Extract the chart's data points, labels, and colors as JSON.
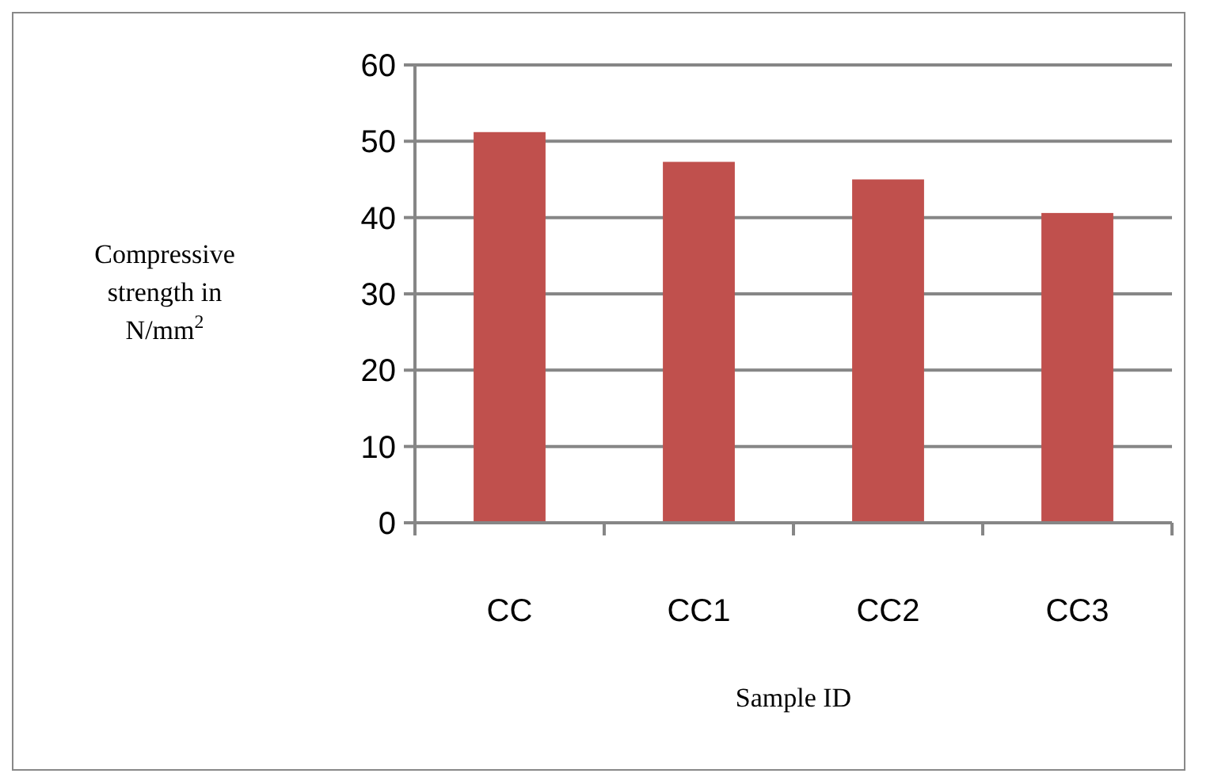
{
  "chart_data": {
    "type": "bar",
    "xlabel": "Sample ID",
    "ylabel": "Compressive\nstrength in\nN/mm$^{2}$",
    "categories": [
      "CC",
      "CC1",
      "CC2",
      "CC3"
    ],
    "values": [
      51.2,
      47.3,
      45.0,
      40.6
    ],
    "color": "#c0504d",
    "ylim": [
      0,
      60
    ],
    "yticks": [
      0,
      10,
      20,
      30,
      40,
      50,
      60
    ],
    "grid": "y"
  }
}
